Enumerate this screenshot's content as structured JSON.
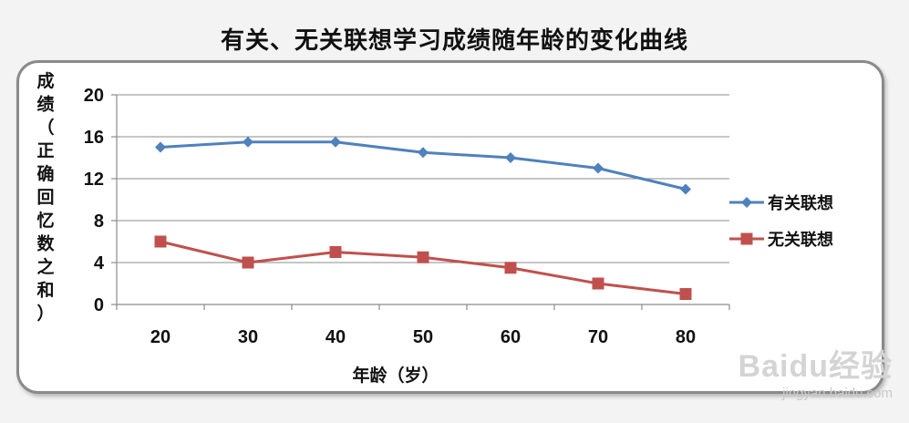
{
  "chart_data": {
    "type": "line",
    "title": "有关、无关联想学习成绩随年龄的变化曲线",
    "xlabel": "年龄（岁）",
    "ylabel": "成绩（正确回忆数之和）",
    "categories": [
      "20",
      "30",
      "40",
      "50",
      "60",
      "70",
      "80"
    ],
    "y_ticks": [
      "0",
      "4",
      "8",
      "12",
      "16",
      "20"
    ],
    "ylim": [
      0,
      20
    ],
    "grid": true,
    "legend_position": "right",
    "series": [
      {
        "name": "有关联想",
        "values": [
          15,
          15.5,
          15.5,
          14.5,
          14,
          13,
          11
        ],
        "color": "#4f81bd",
        "marker": "diamond"
      },
      {
        "name": "无关联想",
        "values": [
          6,
          4,
          5,
          4.5,
          3.5,
          2,
          1
        ],
        "color": "#c0504d",
        "marker": "square"
      }
    ]
  },
  "watermark": {
    "logo": "Baidu经验",
    "url": "jingyan.baidu.com"
  }
}
